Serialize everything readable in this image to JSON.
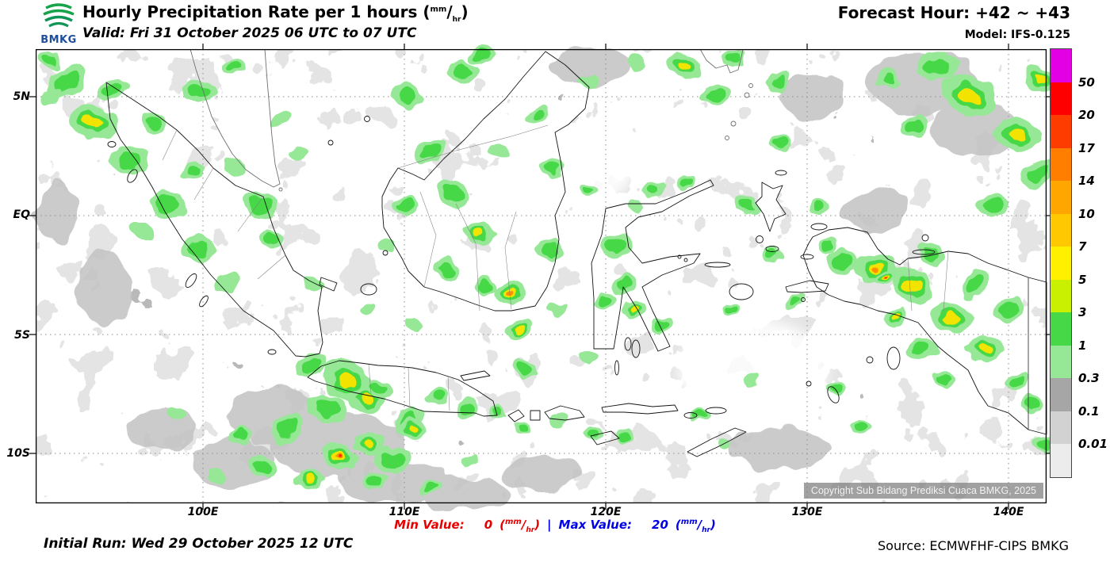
{
  "header": {
    "logo_text": "BMKG",
    "title": "Hourly Precipitation Rate per 1 hours",
    "valid": "Valid: Fri 31 October 2025 06 UTC to 07 UTC",
    "forecast_hour": "Forecast Hour: +42 ~ +43",
    "model": "Model: IFS-0.125"
  },
  "units": {
    "open": "(",
    "num": "mm",
    "slash": "/",
    "den": "hr",
    "close": ")"
  },
  "map": {
    "lat_labels": [
      "5N",
      "EQ",
      "5S",
      "10S"
    ],
    "lon_labels": [
      "100E",
      "110E",
      "120E",
      "130E",
      "140E"
    ],
    "copyright": "Copyright Sub Bidang Prediksi Cuaca BMKG, 2025"
  },
  "legend": {
    "labels": [
      "50",
      "20",
      "17",
      "14",
      "10",
      "7",
      "5",
      "3",
      "1",
      "0.3",
      "0.1",
      "0.01"
    ],
    "colors": [
      "#e400e4",
      "#ff0000",
      "#ff3c00",
      "#ff7e00",
      "#ffa600",
      "#ffc800",
      "#fff000",
      "#c8f000",
      "#46d846",
      "#96e896",
      "#a6a6a6",
      "#d2d2d2",
      "#ececec"
    ]
  },
  "footer": {
    "min_label": "Min Value:",
    "min_value": "0",
    "separator": "|",
    "max_label": "Max Value:",
    "max_value": "20",
    "initial_run": "Initial Run: Wed 29 October 2025 12 UTC",
    "source": "Source: ECMWFHF-CIPS BMKG"
  }
}
